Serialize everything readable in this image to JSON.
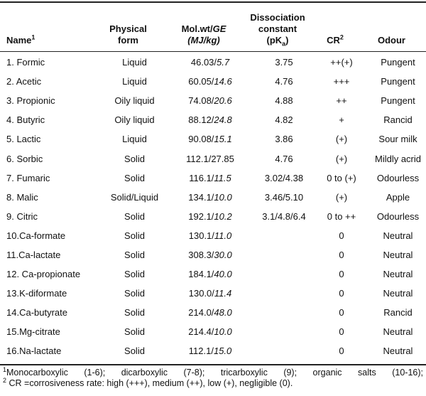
{
  "header": {
    "name": "Name",
    "name_sup": "1",
    "physical_line1": "Physical",
    "physical_line2": "form",
    "mol_line1_a": "Mol.wt/",
    "mol_line1_b": "GE",
    "mol_line2": "(MJ/kg)",
    "diss_line1": "Dissociation",
    "diss_line2": "constant",
    "diss_line3_a": "(pK",
    "diss_line3_sub": "a",
    "diss_line3_b": ")",
    "cr": "CR",
    "cr_sup": "2",
    "odour": "Odour"
  },
  "rows": [
    {
      "name": "1. Formic",
      "form": "Liquid",
      "mw": "46.03/",
      "ge": "5.7",
      "ge_italic": true,
      "pka": "3.75",
      "cr": "++(+)",
      "odour": "Pungent"
    },
    {
      "name": "2. Acetic",
      "form": "Liquid",
      "mw": "60.05/",
      "ge": "14.6",
      "ge_italic": true,
      "pka": "4.76",
      "cr": "+++",
      "odour": "Pungent"
    },
    {
      "name": "3. Propionic",
      "form": "Oily liquid",
      "mw": "74.08/",
      "ge": "20.6",
      "ge_italic": true,
      "pka": "4.88",
      "cr": "++",
      "odour": "Pungent"
    },
    {
      "name": "4. Butyric",
      "form": "Oily liquid",
      "mw": "88.12/",
      "ge": "24.8",
      "ge_italic": true,
      "pka": "4.82",
      "cr": "+",
      "odour": "Rancid"
    },
    {
      "name": "5. Lactic",
      "form": "Liquid",
      "mw": "90.08/",
      "ge": "15.1",
      "ge_italic": true,
      "pka": "3.86",
      "cr": "(+)",
      "odour": "Sour milk"
    },
    {
      "name": "6. Sorbic",
      "form": "Solid",
      "mw": "112.1/",
      "ge": "27.85",
      "ge_italic": false,
      "pka": "4.76",
      "cr": "(+)",
      "odour": "Mildly acrid"
    },
    {
      "name": "7. Fumaric",
      "form": "Solid",
      "mw": "116.1/",
      "ge": "11.5",
      "ge_italic": true,
      "pka": "3.02/4.38",
      "cr": "0 to (+)",
      "odour": "Odourless"
    },
    {
      "name": "8. Malic",
      "form": "Solid/Liquid",
      "mw": "134.1/",
      "ge": "10.0",
      "ge_italic": true,
      "pka": "3.46/5.10",
      "cr": "(+)",
      "odour": "Apple"
    },
    {
      "name": "9. Citric",
      "form": "Solid",
      "mw": "192.1/",
      "ge": "10.2",
      "ge_italic": true,
      "pka": "3.1/4.8/6.4",
      "cr": "0 to ++",
      "odour": "Odourless"
    },
    {
      "name": "10.Ca-formate",
      "form": "Solid",
      "mw": "130.1/",
      "ge": "11.0",
      "ge_italic": true,
      "pka": "",
      "cr": "0",
      "odour": "Neutral"
    },
    {
      "name": "11.Ca-lactate",
      "form": "Solid",
      "mw": "308.3/",
      "ge": "30.0",
      "ge_italic": true,
      "pka": "",
      "cr": "0",
      "odour": "Neutral"
    },
    {
      "name": "12. Ca-propionate",
      "form": "Solid",
      "mw": "184.1/",
      "ge": "40.0",
      "ge_italic": true,
      "pka": "",
      "cr": "0",
      "odour": "Neutral"
    },
    {
      "name": "13.K-diformate",
      "form": "Solid",
      "mw": "130.0/",
      "ge": "11.4",
      "ge_italic": true,
      "pka": "",
      "cr": "0",
      "odour": "Neutral"
    },
    {
      "name": "14.Ca-butyrate",
      "form": "Solid",
      "mw": "214.0/",
      "ge": "48.0",
      "ge_italic": true,
      "pka": "",
      "cr": "0",
      "odour": "Rancid"
    },
    {
      "name": "15.Mg-citrate",
      "form": "Solid",
      "mw": "214.4/",
      "ge": "10.0",
      "ge_italic": true,
      "pka": "",
      "cr": "0",
      "odour": "Neutral"
    },
    {
      "name": "16.Na-lactate",
      "form": "Solid",
      "mw": "112.1/",
      "ge": "15.0",
      "ge_italic": true,
      "pka": "",
      "cr": "0",
      "odour": "Neutral"
    }
  ],
  "footnotes": {
    "fn1_sup": "1",
    "fn1": "Monocarboxylic (1-6); dicarboxylic (7-8); tricarboxylic (9); organic salts (10-16);",
    "fn2_sup": "2",
    "fn2": " CR =corrosiveness rate: high (+++), medium (++), low (+), negligible (0)."
  }
}
